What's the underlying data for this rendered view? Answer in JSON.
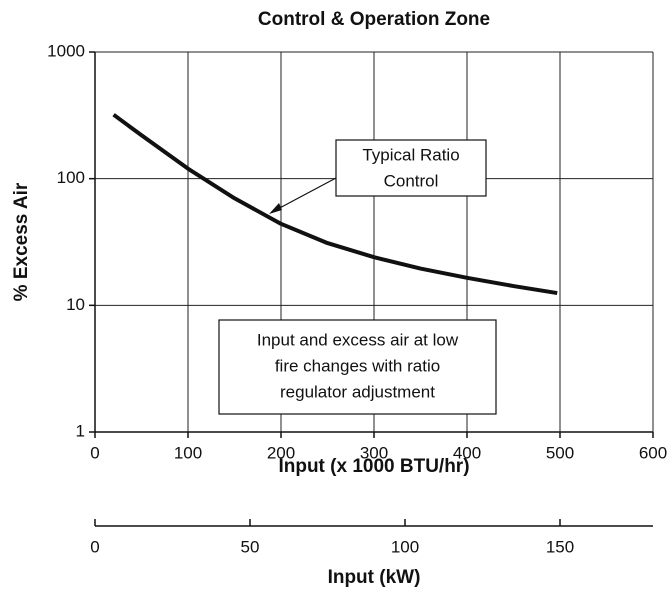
{
  "chart_data": {
    "type": "line",
    "title": "Control & Operation Zone",
    "xlabel": "Input (x 1000 BTU/hr)",
    "ylabel": "% Excess Air",
    "x2label": "Input (kW)",
    "x": [
      20,
      50,
      100,
      150,
      200,
      250,
      300,
      350,
      400,
      450,
      497
    ],
    "series": [
      {
        "color": "#111111",
        "values": [
          320,
          220,
          120,
          70,
          44,
          31,
          24,
          19.5,
          16.5,
          14.2,
          12.5
        ]
      }
    ],
    "xlim": [
      0,
      600
    ],
    "xticks": [
      0,
      100,
      200,
      300,
      400,
      500,
      600
    ],
    "ylim": [
      1,
      1000
    ],
    "yticks": [
      1,
      10,
      100,
      1000
    ],
    "ylog": true,
    "grid": true,
    "x2lim": [
      0,
      180
    ],
    "x2ticks": [
      0,
      50,
      100,
      150
    ],
    "annotations": [
      {
        "lines": [
          "Typical Ratio",
          "Control"
        ]
      },
      {
        "lines": [
          "Input and excess air at low",
          "fire changes with ratio",
          "regulator adjustment"
        ]
      }
    ]
  }
}
